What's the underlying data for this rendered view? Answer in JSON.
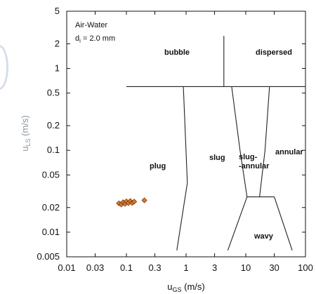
{
  "chart_data": {
    "type": "scatter",
    "title": "",
    "annotations": {
      "fluid": "Air-Water",
      "diameter_prefix": "d",
      "diameter_sub": "i",
      "diameter_value": " = 2.0 mm"
    },
    "xlabel": {
      "main": "u",
      "sub": "GS",
      "unit": " (m/s)"
    },
    "ylabel": {
      "main": "u",
      "sub": "LS",
      "unit": " (m/s)"
    },
    "xscale": "log",
    "yscale": "log",
    "xlim": [
      0.01,
      100
    ],
    "ylim": [
      0.005,
      5
    ],
    "xticks": [
      0.01,
      0.03,
      0.1,
      0.3,
      1,
      3,
      10,
      30,
      100
    ],
    "xtick_labels": [
      "0.01",
      "0.03",
      "0.1",
      "0.3",
      "1",
      "3",
      "10",
      "30",
      "100"
    ],
    "yticks": [
      0.005,
      0.01,
      0.02,
      0.05,
      0.1,
      0.2,
      0.5,
      1,
      2,
      5
    ],
    "ytick_labels": [
      "0.005",
      "0.01",
      "0.02",
      "0.05",
      "0.1",
      "0.2",
      "0.5",
      "1",
      "2",
      "5"
    ],
    "grid": false,
    "series": [
      {
        "marker": "diamond",
        "color": "#d9782b",
        "points": [
          {
            "x": 0.075,
            "y": 0.0225
          },
          {
            "x": 0.082,
            "y": 0.0218
          },
          {
            "x": 0.088,
            "y": 0.0232
          },
          {
            "x": 0.095,
            "y": 0.0222
          },
          {
            "x": 0.1,
            "y": 0.0238
          },
          {
            "x": 0.108,
            "y": 0.0226
          },
          {
            "x": 0.116,
            "y": 0.024
          },
          {
            "x": 0.125,
            "y": 0.0228
          },
          {
            "x": 0.135,
            "y": 0.0236
          },
          {
            "x": 0.2,
            "y": 0.0245
          }
        ]
      }
    ],
    "regions": [
      "bubble",
      "dispersed",
      "plug",
      "slug",
      "slug-",
      "-annular",
      "annular",
      "wavy"
    ],
    "boundaries": [
      {
        "name": "bubble-boundary",
        "pts": [
          [
            0.1,
            0.6
          ],
          [
            100,
            0.6
          ]
        ]
      },
      {
        "name": "bubble-dispersed",
        "pts": [
          [
            4.3,
            0.6
          ],
          [
            4.3,
            2.5
          ]
        ]
      },
      {
        "name": "plug-slug",
        "pts": [
          [
            0.9,
            0.6
          ],
          [
            1.05,
            0.04
          ],
          [
            0.7,
            0.006
          ]
        ]
      },
      {
        "name": "slug-slugannular",
        "pts": [
          [
            5.8,
            0.6
          ],
          [
            8.0,
            0.1
          ],
          [
            10.5,
            0.027
          ]
        ]
      },
      {
        "name": "slugannular-annular",
        "pts": [
          [
            25,
            0.6
          ],
          [
            21,
            0.1
          ],
          [
            17,
            0.027
          ]
        ]
      },
      {
        "name": "wavy-top",
        "pts": [
          [
            10.5,
            0.027
          ],
          [
            30,
            0.027
          ]
        ]
      },
      {
        "name": "wavy-left",
        "pts": [
          [
            10.5,
            0.027
          ],
          [
            5.0,
            0.006
          ]
        ]
      },
      {
        "name": "wavy-right",
        "pts": [
          [
            30,
            0.027
          ],
          [
            60,
            0.006
          ]
        ]
      }
    ]
  }
}
